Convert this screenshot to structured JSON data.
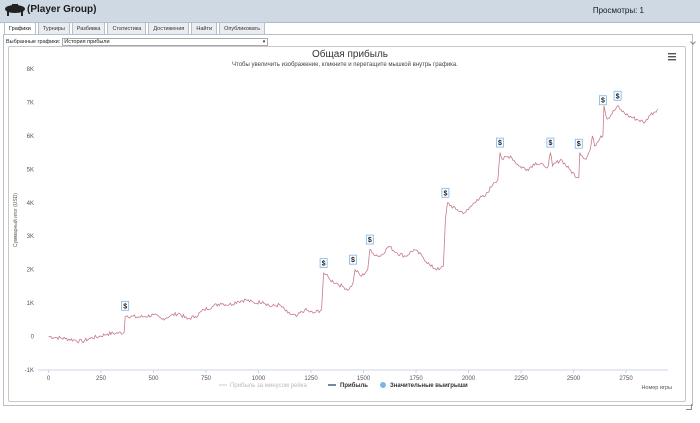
{
  "header": {
    "app_title": "(Player Group)",
    "views_label": "Просмотры: 1"
  },
  "tabs": [
    {
      "label": "Графики",
      "active": true
    },
    {
      "label": "Турниры",
      "active": false
    },
    {
      "label": "Разбивка",
      "active": false
    },
    {
      "label": "Статистика",
      "active": false
    },
    {
      "label": "Достижения",
      "active": false
    },
    {
      "label": "Найти",
      "active": false
    },
    {
      "label": "Опубликовать",
      "active": false
    }
  ],
  "selector": {
    "label": "Выбранные графики:",
    "value": "История прибыли"
  },
  "chart_data": {
    "type": "line",
    "title": "Общая прибыль",
    "subtitle": "Чтобы увеличить изображение, кликните и перетащите мышкой внутрь графика.",
    "xlabel": "Номер игры",
    "ylabel": "Суммарный итог (USD)",
    "xlim": [
      -50,
      2950
    ],
    "ylim": [
      -1000,
      8000
    ],
    "x_ticks": [
      "0",
      "250",
      "500",
      "750",
      "1000",
      "1250",
      "1500",
      "1750",
      "2000",
      "2250",
      "2500",
      "2750"
    ],
    "x_tick_values": [
      0,
      250,
      500,
      750,
      1000,
      1250,
      1500,
      1750,
      2000,
      2250,
      2500,
      2750
    ],
    "y_ticks": [
      "-1K",
      "0",
      "1K",
      "2K",
      "3K",
      "4K",
      "5K",
      "6K",
      "7K",
      "8K"
    ],
    "y_tick_values": [
      -1000,
      0,
      1000,
      2000,
      3000,
      4000,
      5000,
      6000,
      7000,
      8000
    ],
    "legend_position": "bottom",
    "legend": [
      {
        "name": "Прибыль за минусом рейка",
        "color": "#cccccc",
        "muted": true
      },
      {
        "name": "Прибыль",
        "color": "#1f3a5f",
        "muted": false
      },
      {
        "name": "Значительные выигрыши",
        "color": "#7cb5ec",
        "marker": "circle",
        "muted": false
      }
    ],
    "series": [
      {
        "name": "Прибыль",
        "color": "#c77a8a",
        "x": [
          0,
          40,
          80,
          120,
          160,
          200,
          240,
          280,
          320,
          360,
          365,
          375,
          420,
          460,
          500,
          540,
          580,
          620,
          660,
          700,
          740,
          780,
          820,
          860,
          900,
          940,
          980,
          1020,
          1060,
          1100,
          1140,
          1180,
          1220,
          1260,
          1300,
          1310,
          1320,
          1340,
          1370,
          1400,
          1430,
          1450,
          1460,
          1490,
          1520,
          1530,
          1540,
          1580,
          1620,
          1660,
          1700,
          1740,
          1780,
          1820,
          1860,
          1880,
          1890,
          1900,
          1940,
          1980,
          2000,
          2040,
          2080,
          2120,
          2140,
          2150,
          2160,
          2200,
          2240,
          2280,
          2320,
          2360,
          2380,
          2390,
          2400,
          2440,
          2480,
          2520,
          2525,
          2530,
          2560,
          2580,
          2590,
          2600,
          2630,
          2640,
          2645,
          2660,
          2700,
          2710,
          2720,
          2760,
          2800,
          2840,
          2860,
          2900
        ],
        "y": [
          0,
          -30,
          -60,
          -100,
          -150,
          -50,
          0,
          80,
          100,
          120,
          600,
          620,
          580,
          600,
          650,
          520,
          620,
          700,
          520,
          600,
          800,
          900,
          1000,
          950,
          1050,
          1100,
          1000,
          1050,
          900,
          950,
          700,
          600,
          800,
          700,
          800,
          1900,
          1850,
          1700,
          1600,
          1500,
          1400,
          1600,
          2000,
          1800,
          2000,
          2600,
          2500,
          2400,
          2700,
          2500,
          2400,
          2600,
          2400,
          2100,
          2000,
          2100,
          3500,
          4000,
          3800,
          3700,
          3800,
          4100,
          4200,
          4600,
          4700,
          5500,
          5300,
          5400,
          5100,
          5000,
          5200,
          5100,
          5100,
          5500,
          5100,
          5300,
          5000,
          4750,
          4750,
          5500,
          5300,
          5600,
          6000,
          5700,
          6000,
          6000,
          6900,
          6500,
          6800,
          6900,
          6800,
          6600,
          6500,
          6400,
          6600,
          6800
        ]
      }
    ],
    "big_wins": [
      {
        "x": 365,
        "label": "$"
      },
      {
        "x": 1310,
        "label": "$"
      },
      {
        "x": 1450,
        "label": "$"
      },
      {
        "x": 1530,
        "label": "$"
      },
      {
        "x": 1890,
        "label": "$"
      },
      {
        "x": 2150,
        "label": "$"
      },
      {
        "x": 2390,
        "label": "$"
      },
      {
        "x": 2525,
        "label": "$"
      },
      {
        "x": 2640,
        "label": "$"
      },
      {
        "x": 2710,
        "label": "$"
      }
    ],
    "grid": false
  },
  "icons": {
    "menu": "hamburger-menu-icon",
    "logo": "poker-table-icon"
  }
}
